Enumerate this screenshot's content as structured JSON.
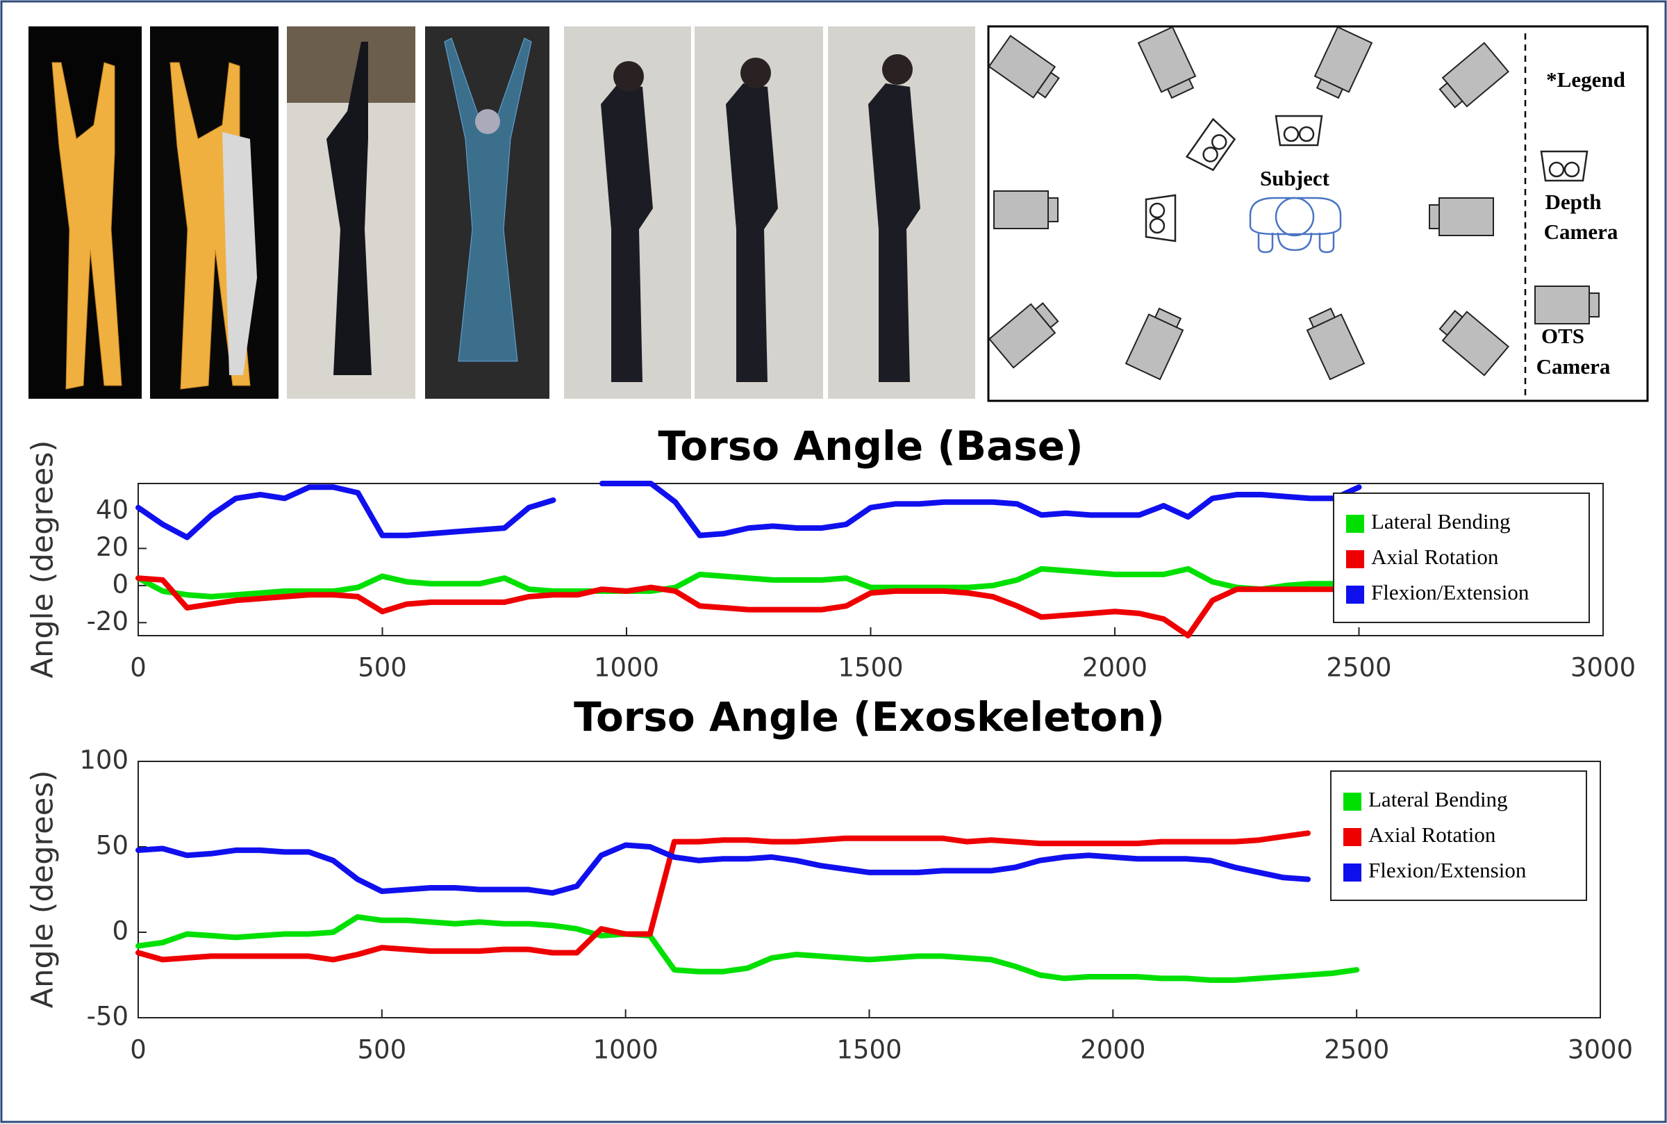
{
  "diagram": {
    "subject": "Subject",
    "legend_title": "*Legend",
    "depth_camera": [
      "Depth",
      "Camera"
    ],
    "ots_camera": [
      "OTS",
      "Camera"
    ]
  },
  "chart_data": [
    {
      "type": "line",
      "title": "Torso Angle (Base)",
      "y_label": "Angle (degrees)",
      "x": [
        0,
        50,
        100,
        150,
        200,
        250,
        300,
        350,
        400,
        450,
        500,
        550,
        600,
        650,
        700,
        750,
        800,
        850,
        900,
        950,
        1000,
        1050,
        1100,
        1150,
        1200,
        1250,
        1300,
        1350,
        1400,
        1450,
        1500,
        1550,
        1600,
        1650,
        1700,
        1750,
        1800,
        1850,
        1900,
        1950,
        2000,
        2050,
        2100,
        2150,
        2200,
        2250,
        2300,
        2350,
        2400,
        2450,
        2500
      ],
      "series": [
        {
          "name": "Lateral Bending",
          "color": "#00e000",
          "values": [
            4,
            -3,
            -5,
            -6,
            -5,
            -4,
            -3,
            -3,
            -3,
            -1,
            5,
            2,
            1,
            1,
            1,
            4,
            -2,
            -3,
            -3,
            -3,
            -3,
            -3,
            -1,
            6,
            5,
            4,
            3,
            3,
            3,
            4,
            -1,
            -1,
            -1,
            -1,
            -1,
            0,
            3,
            9,
            8,
            7,
            6,
            6,
            6,
            9,
            2,
            -1,
            -2,
            0,
            1,
            1,
            null
          ]
        },
        {
          "name": "Axial Rotation",
          "color": "#ee0000",
          "values": [
            4,
            3,
            -12,
            -10,
            -8,
            -7,
            -6,
            -5,
            -5,
            -6,
            -14,
            -10,
            -9,
            -9,
            -9,
            -9,
            -6,
            -5,
            -5,
            -2,
            -3,
            -1,
            -3,
            -11,
            -12,
            -13,
            -13,
            -13,
            -13,
            -11,
            -4,
            -3,
            -3,
            -3,
            -4,
            -6,
            -11,
            -17,
            -16,
            -15,
            -14,
            -15,
            -18,
            -27,
            -8,
            -2,
            -2,
            -2,
            -2,
            -2,
            null
          ]
        },
        {
          "name": "Flexion/Extension",
          "color": "#1010ee",
          "values": [
            42,
            33,
            26,
            38,
            47,
            49,
            47,
            53,
            53,
            50,
            27,
            27,
            28,
            29,
            30,
            31,
            42,
            46,
            null,
            55,
            55,
            55,
            45,
            27,
            28,
            31,
            32,
            31,
            31,
            33,
            42,
            44,
            44,
            45,
            45,
            45,
            44,
            38,
            39,
            38,
            38,
            38,
            43,
            37,
            47,
            49,
            49,
            48,
            47,
            47,
            53
          ]
        }
      ],
      "xlim": [
        0,
        3000
      ],
      "xticks": [
        0,
        500,
        1000,
        1500,
        2000,
        2500,
        3000
      ],
      "ylim": [
        -27,
        55
      ],
      "yticks": [
        -20,
        0,
        20,
        40
      ],
      "grid": false,
      "legend": "upper right"
    },
    {
      "type": "line",
      "title": "Torso Angle (Exoskeleton)",
      "y_label": "Angle (degrees)",
      "x": [
        0,
        50,
        100,
        150,
        200,
        250,
        300,
        350,
        400,
        450,
        500,
        550,
        600,
        650,
        700,
        750,
        800,
        850,
        900,
        950,
        1000,
        1050,
        1100,
        1150,
        1200,
        1250,
        1300,
        1350,
        1400,
        1450,
        1500,
        1550,
        1600,
        1650,
        1700,
        1750,
        1800,
        1850,
        1900,
        1950,
        2000,
        2050,
        2100,
        2150,
        2200,
        2250,
        2300,
        2350,
        2400,
        2450,
        2500
      ],
      "series": [
        {
          "name": "Lateral Bending",
          "color": "#00e000",
          "values": [
            -8,
            -6,
            -1,
            -2,
            -3,
            -2,
            -1,
            -1,
            0,
            9,
            7,
            7,
            6,
            5,
            6,
            5,
            5,
            4,
            2,
            -2,
            -1,
            -2,
            -22,
            -23,
            -23,
            -21,
            -15,
            -13,
            -14,
            -15,
            -16,
            -15,
            -14,
            -14,
            -15,
            -16,
            -20,
            -25,
            -27,
            -26,
            -26,
            -26,
            -27,
            -27,
            -28,
            -28,
            -27,
            -26,
            -25,
            -24,
            -22
          ]
        },
        {
          "name": "Axial Rotation",
          "color": "#ee0000",
          "values": [
            -12,
            -16,
            -15,
            -14,
            -14,
            -14,
            -14,
            -14,
            -16,
            -13,
            -9,
            -10,
            -11,
            -11,
            -11,
            -10,
            -10,
            -12,
            -12,
            2,
            -1,
            -1,
            53,
            53,
            54,
            54,
            53,
            53,
            54,
            55,
            55,
            55,
            55,
            55,
            53,
            54,
            53,
            52,
            52,
            52,
            52,
            52,
            53,
            53,
            53,
            53,
            54,
            56,
            58,
            null,
            null
          ]
        },
        {
          "name": "Flexion/Extension",
          "color": "#1010ee",
          "values": [
            48,
            49,
            45,
            46,
            48,
            48,
            47,
            47,
            42,
            31,
            24,
            25,
            26,
            26,
            25,
            25,
            25,
            23,
            27,
            45,
            51,
            50,
            44,
            42,
            43,
            43,
            44,
            42,
            39,
            37,
            35,
            35,
            35,
            36,
            36,
            36,
            38,
            42,
            44,
            45,
            44,
            43,
            43,
            43,
            42,
            38,
            35,
            32,
            31,
            null,
            null
          ]
        }
      ],
      "xlim": [
        0,
        3000
      ],
      "xticks": [
        0,
        500,
        1000,
        1500,
        2000,
        2500,
        3000
      ],
      "ylim": [
        -50,
        100
      ],
      "yticks": [
        -50,
        0,
        50,
        100
      ],
      "grid": false,
      "legend": "upper right"
    }
  ]
}
